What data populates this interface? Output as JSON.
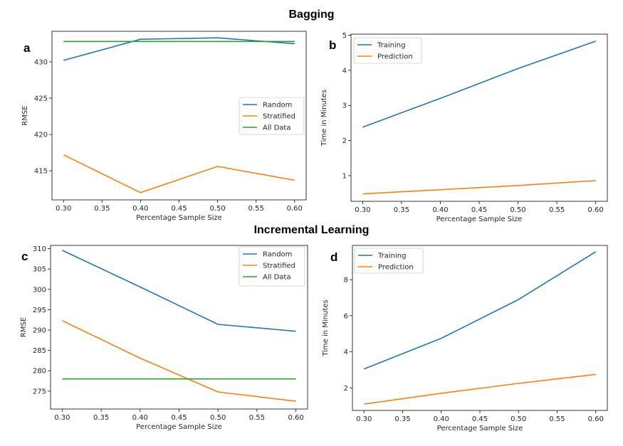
{
  "titles": {
    "top": "Bagging",
    "bottom": "Incremental Learning"
  },
  "panel_letters": {
    "a": "a",
    "b": "b",
    "c": "c",
    "d": "d"
  },
  "colors": {
    "blue": "#1f77b4",
    "orange": "#ff7f0e",
    "green": "#2ca02c"
  },
  "chart_data": [
    {
      "id": "a",
      "type": "line",
      "xlabel": "Percentage Sample Size",
      "ylabel": "RMSE",
      "xlim": [
        0.285,
        0.615
      ],
      "ylim": [
        411,
        434.2
      ],
      "xticks": [
        0.3,
        0.35,
        0.4,
        0.45,
        0.5,
        0.55,
        0.6
      ],
      "yticks": [
        415,
        420,
        425,
        430
      ],
      "legend_position": "center-right",
      "series": [
        {
          "name": "Random",
          "color": "#1f77b4",
          "x": [
            0.3,
            0.4,
            0.5,
            0.6
          ],
          "y": [
            430.2,
            433.1,
            433.3,
            432.5
          ]
        },
        {
          "name": "Stratified",
          "color": "#ff7f0e",
          "x": [
            0.3,
            0.4,
            0.5,
            0.6
          ],
          "y": [
            417.2,
            412.0,
            415.6,
            413.7
          ]
        },
        {
          "name": "All Data",
          "color": "#2ca02c",
          "x": [
            0.3,
            0.4,
            0.5,
            0.6
          ],
          "y": [
            432.8,
            432.8,
            432.8,
            432.8
          ]
        }
      ]
    },
    {
      "id": "b",
      "type": "line",
      "xlabel": "Percentage Sample Size",
      "ylabel": "Time in Minutes",
      "xlim": [
        0.285,
        0.615
      ],
      "ylim": [
        0.27,
        5.03
      ],
      "xticks": [
        0.3,
        0.35,
        0.4,
        0.45,
        0.5,
        0.55,
        0.6
      ],
      "yticks": [
        1,
        2,
        3,
        4,
        5
      ],
      "legend_position": "top-left",
      "series": [
        {
          "name": "Training",
          "color": "#1f77b4",
          "x": [
            0.3,
            0.4,
            0.5,
            0.6
          ],
          "y": [
            2.38,
            3.2,
            4.05,
            4.83
          ]
        },
        {
          "name": "Prediction",
          "color": "#ff7f0e",
          "x": [
            0.3,
            0.4,
            0.5,
            0.6
          ],
          "y": [
            0.48,
            0.6,
            0.72,
            0.86
          ]
        }
      ]
    },
    {
      "id": "c",
      "type": "line",
      "xlabel": "Percentage Sample Size",
      "ylabel": "RMSE",
      "xlim": [
        0.285,
        0.615
      ],
      "ylim": [
        270.6,
        310.8
      ],
      "xticks": [
        0.3,
        0.35,
        0.4,
        0.45,
        0.5,
        0.55,
        0.6
      ],
      "yticks": [
        275,
        280,
        285,
        290,
        295,
        300,
        305,
        310
      ],
      "legend_position": "top-right",
      "series": [
        {
          "name": "Random",
          "color": "#1f77b4",
          "x": [
            0.3,
            0.4,
            0.5,
            0.6
          ],
          "y": [
            309.6,
            300.6,
            291.4,
            289.7
          ]
        },
        {
          "name": "Stratified",
          "color": "#ff7f0e",
          "x": [
            0.3,
            0.4,
            0.5,
            0.6
          ],
          "y": [
            292.3,
            283.1,
            274.8,
            272.5
          ]
        },
        {
          "name": "All Data",
          "color": "#2ca02c",
          "x": [
            0.3,
            0.4,
            0.5,
            0.6
          ],
          "y": [
            278.0,
            278.0,
            278.0,
            278.0
          ]
        }
      ]
    },
    {
      "id": "d",
      "type": "line",
      "xlabel": "Percentage Sample Size",
      "ylabel": "Time in Minutes",
      "xlim": [
        0.285,
        0.615
      ],
      "ylim": [
        0.75,
        9.9
      ],
      "xticks": [
        0.3,
        0.35,
        0.4,
        0.45,
        0.5,
        0.55,
        0.6
      ],
      "yticks": [
        2,
        4,
        6,
        8
      ],
      "legend_position": "top-left",
      "series": [
        {
          "name": "Training",
          "color": "#1f77b4",
          "x": [
            0.3,
            0.4,
            0.5,
            0.6
          ],
          "y": [
            3.05,
            4.75,
            6.9,
            9.55
          ]
        },
        {
          "name": "Prediction",
          "color": "#ff7f0e",
          "x": [
            0.3,
            0.4,
            0.5,
            0.6
          ],
          "y": [
            1.1,
            1.7,
            2.25,
            2.75
          ]
        }
      ]
    }
  ]
}
